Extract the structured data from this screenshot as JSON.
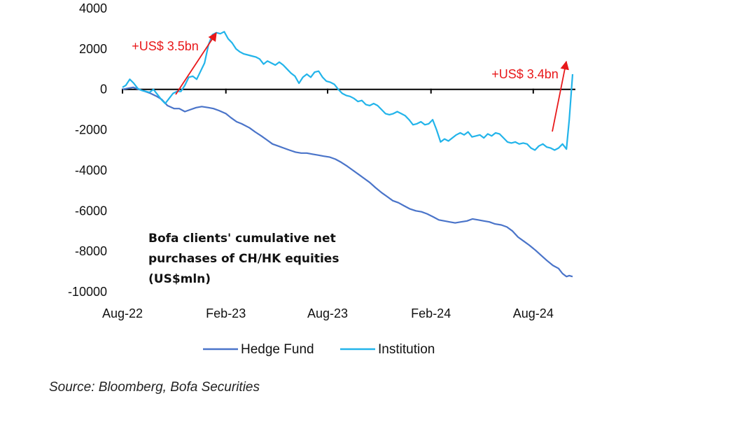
{
  "chart_data": {
    "type": "line",
    "title": [
      "Bofa clients' cumulative net",
      "purchases of CH/HK equities",
      "(US$mln)"
    ],
    "source": "Source: Bloomberg, Bofa Securities",
    "ylim": [
      -10000,
      4000
    ],
    "yticks": [
      "4000",
      "2000",
      "0",
      "-2000",
      "-4000",
      "-6000",
      "-8000",
      "-10000"
    ],
    "xlim": [
      "2022-08-01",
      "2024-10-10"
    ],
    "xticks": [
      {
        "label": "Aug-22",
        "date": "2022-08-01"
      },
      {
        "label": "Feb-23",
        "date": "2023-02-01"
      },
      {
        "label": "Aug-23",
        "date": "2023-08-01"
      },
      {
        "label": "Feb-24",
        "date": "2024-02-01"
      },
      {
        "label": "Aug-24",
        "date": "2024-08-01"
      }
    ],
    "legend_position": "bottom",
    "annotations": [
      {
        "text": "+US$ 3.5bn",
        "color": "#e8181a",
        "date": "2022-09-10"
      },
      {
        "text": "+US$ 3.4bn",
        "color": "#e8181a",
        "date": "2024-08-30"
      }
    ],
    "series": [
      {
        "name": "Hedge Fund",
        "color": "#4a74c9",
        "points": [
          [
            "2022-08-01",
            0
          ],
          [
            "2022-08-10",
            50
          ],
          [
            "2022-08-20",
            100
          ],
          [
            "2022-08-30",
            0
          ],
          [
            "2022-09-10",
            -100
          ],
          [
            "2022-09-20",
            -200
          ],
          [
            "2022-10-01",
            -350
          ],
          [
            "2022-10-10",
            -500
          ],
          [
            "2022-10-20",
            -800
          ],
          [
            "2022-11-01",
            -950
          ],
          [
            "2022-11-10",
            -950
          ],
          [
            "2022-11-20",
            -1100
          ],
          [
            "2022-11-30",
            -1000
          ],
          [
            "2022-12-10",
            -900
          ],
          [
            "2022-12-20",
            -850
          ],
          [
            "2023-01-01",
            -900
          ],
          [
            "2023-01-10",
            -950
          ],
          [
            "2023-01-20",
            -1050
          ],
          [
            "2023-02-01",
            -1200
          ],
          [
            "2023-02-10",
            -1400
          ],
          [
            "2023-02-20",
            -1600
          ],
          [
            "2023-03-01",
            -1700
          ],
          [
            "2023-03-15",
            -1900
          ],
          [
            "2023-03-25",
            -2100
          ],
          [
            "2023-04-05",
            -2300
          ],
          [
            "2023-04-15",
            -2500
          ],
          [
            "2023-04-25",
            -2700
          ],
          [
            "2023-05-05",
            -2800
          ],
          [
            "2023-05-15",
            -2900
          ],
          [
            "2023-05-25",
            -3000
          ],
          [
            "2023-06-05",
            -3100
          ],
          [
            "2023-06-15",
            -3150
          ],
          [
            "2023-06-25",
            -3150
          ],
          [
            "2023-07-05",
            -3200
          ],
          [
            "2023-07-15",
            -3250
          ],
          [
            "2023-07-25",
            -3300
          ],
          [
            "2023-08-05",
            -3350
          ],
          [
            "2023-08-15",
            -3450
          ],
          [
            "2023-08-25",
            -3600
          ],
          [
            "2023-09-05",
            -3800
          ],
          [
            "2023-09-15",
            -4000
          ],
          [
            "2023-09-25",
            -4200
          ],
          [
            "2023-10-05",
            -4400
          ],
          [
            "2023-10-15",
            -4600
          ],
          [
            "2023-10-25",
            -4850
          ],
          [
            "2023-11-05",
            -5100
          ],
          [
            "2023-11-15",
            -5300
          ],
          [
            "2023-11-25",
            -5500
          ],
          [
            "2023-12-05",
            -5600
          ],
          [
            "2023-12-15",
            -5750
          ],
          [
            "2023-12-25",
            -5900
          ],
          [
            "2024-01-05",
            -6000
          ],
          [
            "2024-01-15",
            -6050
          ],
          [
            "2024-01-25",
            -6150
          ],
          [
            "2024-02-05",
            -6300
          ],
          [
            "2024-02-15",
            -6450
          ],
          [
            "2024-02-25",
            -6500
          ],
          [
            "2024-03-05",
            -6550
          ],
          [
            "2024-03-15",
            -6600
          ],
          [
            "2024-03-25",
            -6550
          ],
          [
            "2024-04-05",
            -6500
          ],
          [
            "2024-04-15",
            -6400
          ],
          [
            "2024-04-25",
            -6450
          ],
          [
            "2024-05-05",
            -6500
          ],
          [
            "2024-05-15",
            -6550
          ],
          [
            "2024-05-25",
            -6650
          ],
          [
            "2024-06-05",
            -6700
          ],
          [
            "2024-06-15",
            -6800
          ],
          [
            "2024-06-25",
            -7000
          ],
          [
            "2024-07-05",
            -7300
          ],
          [
            "2024-07-15",
            -7500
          ],
          [
            "2024-07-25",
            -7700
          ],
          [
            "2024-08-05",
            -7950
          ],
          [
            "2024-08-15",
            -8200
          ],
          [
            "2024-08-25",
            -8450
          ],
          [
            "2024-09-05",
            -8700
          ],
          [
            "2024-09-15",
            -8850
          ],
          [
            "2024-09-22",
            -9100
          ],
          [
            "2024-09-29",
            -9250
          ],
          [
            "2024-10-04",
            -9200
          ],
          [
            "2024-10-10",
            -9250
          ]
        ]
      },
      {
        "name": "Institution",
        "color": "#22b4ea",
        "points": [
          [
            "2022-08-01",
            100
          ],
          [
            "2022-08-07",
            200
          ],
          [
            "2022-08-14",
            500
          ],
          [
            "2022-08-21",
            300
          ],
          [
            "2022-08-28",
            50
          ],
          [
            "2022-09-04",
            -50
          ],
          [
            "2022-09-11",
            -100
          ],
          [
            "2022-09-18",
            -150
          ],
          [
            "2022-09-25",
            0
          ],
          [
            "2022-10-02",
            -250
          ],
          [
            "2022-10-09",
            -500
          ],
          [
            "2022-10-16",
            -700
          ],
          [
            "2022-10-23",
            -450
          ],
          [
            "2022-10-30",
            -200
          ],
          [
            "2022-11-06",
            -100
          ],
          [
            "2022-11-13",
            -100
          ],
          [
            "2022-11-20",
            200
          ],
          [
            "2022-11-27",
            600
          ],
          [
            "2022-12-04",
            650
          ],
          [
            "2022-12-11",
            500
          ],
          [
            "2022-12-18",
            900
          ],
          [
            "2022-12-25",
            1300
          ],
          [
            "2023-01-01",
            2200
          ],
          [
            "2023-01-08",
            2700
          ],
          [
            "2023-01-15",
            2800
          ],
          [
            "2023-01-22",
            2750
          ],
          [
            "2023-01-29",
            2850
          ],
          [
            "2023-02-05",
            2500
          ],
          [
            "2023-02-12",
            2300
          ],
          [
            "2023-02-19",
            2000
          ],
          [
            "2023-02-26",
            1850
          ],
          [
            "2023-03-05",
            1750
          ],
          [
            "2023-03-12",
            1700
          ],
          [
            "2023-03-19",
            1650
          ],
          [
            "2023-03-26",
            1600
          ],
          [
            "2023-04-02",
            1500
          ],
          [
            "2023-04-09",
            1250
          ],
          [
            "2023-04-16",
            1400
          ],
          [
            "2023-04-23",
            1300
          ],
          [
            "2023-04-30",
            1200
          ],
          [
            "2023-05-07",
            1350
          ],
          [
            "2023-05-14",
            1200
          ],
          [
            "2023-05-21",
            1000
          ],
          [
            "2023-05-28",
            800
          ],
          [
            "2023-06-04",
            650
          ],
          [
            "2023-06-11",
            300
          ],
          [
            "2023-06-18",
            600
          ],
          [
            "2023-06-25",
            750
          ],
          [
            "2023-07-02",
            600
          ],
          [
            "2023-07-09",
            850
          ],
          [
            "2023-07-16",
            900
          ],
          [
            "2023-07-23",
            600
          ],
          [
            "2023-07-30",
            400
          ],
          [
            "2023-08-06",
            350
          ],
          [
            "2023-08-13",
            250
          ],
          [
            "2023-08-20",
            0
          ],
          [
            "2023-08-27",
            -200
          ],
          [
            "2023-09-03",
            -300
          ],
          [
            "2023-09-10",
            -350
          ],
          [
            "2023-09-17",
            -450
          ],
          [
            "2023-09-24",
            -600
          ],
          [
            "2023-10-01",
            -550
          ],
          [
            "2023-10-08",
            -750
          ],
          [
            "2023-10-15",
            -800
          ],
          [
            "2023-10-22",
            -700
          ],
          [
            "2023-10-29",
            -800
          ],
          [
            "2023-11-05",
            -1000
          ],
          [
            "2023-11-12",
            -1200
          ],
          [
            "2023-11-19",
            -1250
          ],
          [
            "2023-11-26",
            -1200
          ],
          [
            "2023-12-03",
            -1100
          ],
          [
            "2023-12-10",
            -1200
          ],
          [
            "2023-12-17",
            -1300
          ],
          [
            "2023-12-24",
            -1500
          ],
          [
            "2023-12-31",
            -1750
          ],
          [
            "2024-01-07",
            -1700
          ],
          [
            "2024-01-14",
            -1600
          ],
          [
            "2024-01-21",
            -1750
          ],
          [
            "2024-01-28",
            -1700
          ],
          [
            "2024-02-04",
            -1500
          ],
          [
            "2024-02-11",
            -2000
          ],
          [
            "2024-02-18",
            -2600
          ],
          [
            "2024-02-25",
            -2450
          ],
          [
            "2024-03-03",
            -2550
          ],
          [
            "2024-03-10",
            -2400
          ],
          [
            "2024-03-17",
            -2250
          ],
          [
            "2024-03-24",
            -2150
          ],
          [
            "2024-03-31",
            -2250
          ],
          [
            "2024-04-07",
            -2100
          ],
          [
            "2024-04-14",
            -2350
          ],
          [
            "2024-04-21",
            -2300
          ],
          [
            "2024-04-28",
            -2250
          ],
          [
            "2024-05-05",
            -2400
          ],
          [
            "2024-05-12",
            -2200
          ],
          [
            "2024-05-19",
            -2300
          ],
          [
            "2024-05-26",
            -2150
          ],
          [
            "2024-06-02",
            -2200
          ],
          [
            "2024-06-09",
            -2400
          ],
          [
            "2024-06-16",
            -2600
          ],
          [
            "2024-06-23",
            -2650
          ],
          [
            "2024-06-30",
            -2600
          ],
          [
            "2024-07-07",
            -2700
          ],
          [
            "2024-07-14",
            -2650
          ],
          [
            "2024-07-21",
            -2700
          ],
          [
            "2024-07-28",
            -2900
          ],
          [
            "2024-08-04",
            -3000
          ],
          [
            "2024-08-11",
            -2800
          ],
          [
            "2024-08-18",
            -2700
          ],
          [
            "2024-08-25",
            -2850
          ],
          [
            "2024-09-01",
            -2900
          ],
          [
            "2024-09-08",
            -3000
          ],
          [
            "2024-09-15",
            -2900
          ],
          [
            "2024-09-22",
            -2700
          ],
          [
            "2024-09-29",
            -2950
          ],
          [
            "2024-10-04",
            -1500
          ],
          [
            "2024-10-10",
            750
          ]
        ]
      }
    ]
  }
}
